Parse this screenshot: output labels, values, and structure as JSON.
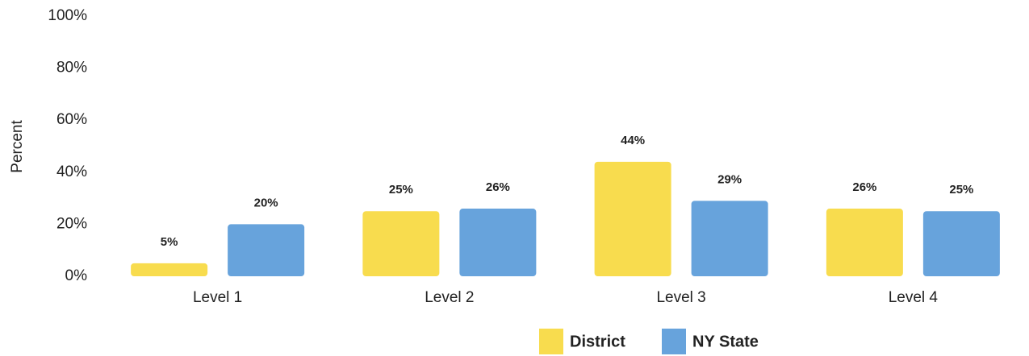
{
  "chart_data": {
    "type": "bar",
    "y_label": "Percent",
    "categories": [
      "Level 1",
      "Level 2",
      "Level 3",
      "Level 4"
    ],
    "series": [
      {
        "name": "District",
        "color": "#f8dc4e",
        "values": [
          5,
          25,
          44,
          26
        ],
        "value_labels": [
          "5%",
          "25%",
          "44%",
          "26%"
        ]
      },
      {
        "name": "NY State",
        "color": "#67a3dc",
        "values": [
          20,
          26,
          29,
          25
        ],
        "value_labels": [
          "20%",
          "26%",
          "29%",
          "25%"
        ]
      }
    ],
    "ylim": [
      0,
      100
    ],
    "yticks": [
      {
        "value": 0,
        "label": "0%"
      },
      {
        "value": 20,
        "label": "20%"
      },
      {
        "value": 40,
        "label": "40%"
      },
      {
        "value": 60,
        "label": "60%"
      },
      {
        "value": 80,
        "label": "80%"
      },
      {
        "value": 100,
        "label": "100%"
      }
    ],
    "grid": false,
    "legend": "bottom"
  }
}
